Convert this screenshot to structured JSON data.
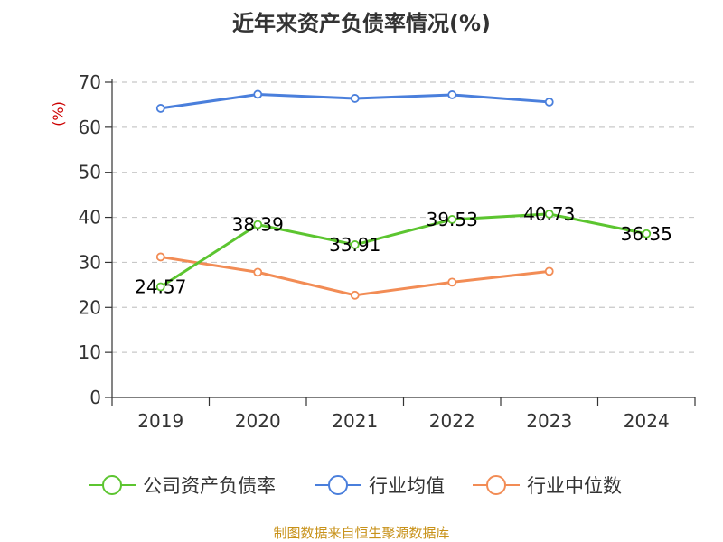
{
  "chart_data": {
    "type": "line",
    "title": "近年来资产负债率情况(%)",
    "ylabel": "(%)",
    "xlabel": "",
    "categories": [
      "2019",
      "2020",
      "2021",
      "2022",
      "2023",
      "2024"
    ],
    "ylim": [
      0,
      70
    ],
    "yticks": [
      0,
      10,
      20,
      30,
      40,
      50,
      60,
      70
    ],
    "grid": "horizontal-dashed",
    "legend_position": "bottom",
    "series": [
      {
        "name": "公司资产负债率",
        "color": "#5cc530",
        "values": [
          24.57,
          38.39,
          33.91,
          39.53,
          40.73,
          36.35
        ],
        "data_labels": [
          "24.57",
          "38.39",
          "33.91",
          "39.53",
          "40.73",
          "36.35"
        ]
      },
      {
        "name": "行业均值",
        "color": "#4a7fdc",
        "values": [
          64.2,
          67.3,
          66.4,
          67.2,
          65.6,
          null
        ]
      },
      {
        "name": "行业中位数",
        "color": "#f28c55",
        "values": [
          31.2,
          27.8,
          22.7,
          25.6,
          28.0,
          null
        ]
      }
    ]
  },
  "source": "制图数据来自恒生聚源数据库"
}
